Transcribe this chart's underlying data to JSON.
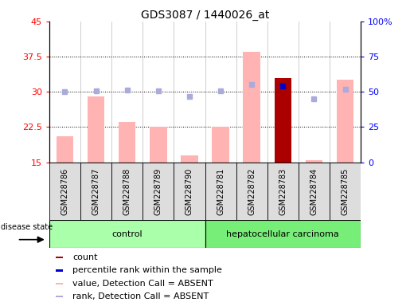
{
  "title": "GDS3087 / 1440026_at",
  "samples": [
    "GSM228786",
    "GSM228787",
    "GSM228788",
    "GSM228789",
    "GSM228790",
    "GSM228781",
    "GSM228782",
    "GSM228783",
    "GSM228784",
    "GSM228785"
  ],
  "ylim_left": [
    15,
    45
  ],
  "ylim_right": [
    0,
    100
  ],
  "yticks_left": [
    15,
    22.5,
    30,
    37.5,
    45
  ],
  "yticks_right": [
    0,
    25,
    50,
    75,
    100
  ],
  "yticklabels_left": [
    "15",
    "22.5",
    "30",
    "37.5",
    "45"
  ],
  "yticklabels_right": [
    "0",
    "25",
    "50",
    "75",
    "100%"
  ],
  "value_absent": [
    20.5,
    29.0,
    23.5,
    22.5,
    16.5,
    22.5,
    38.5,
    33.0,
    15.5,
    32.5
  ],
  "rank_absent": [
    30.0,
    30.2,
    30.3,
    30.2,
    29.0,
    30.2,
    31.5,
    null,
    28.5,
    30.5
  ],
  "count_present": [
    null,
    null,
    null,
    null,
    null,
    null,
    null,
    33.0,
    null,
    null
  ],
  "rank_present": [
    null,
    null,
    null,
    null,
    null,
    null,
    null,
    31.3,
    null,
    null
  ],
  "color_value_absent": "#FFB3B3",
  "color_rank_absent": "#AAAADD",
  "color_count_present": "#AA0000",
  "color_rank_present": "#0000CC",
  "legend_items": [
    {
      "label": "count",
      "color": "#AA0000"
    },
    {
      "label": "percentile rank within the sample",
      "color": "#0000CC"
    },
    {
      "label": "value, Detection Call = ABSENT",
      "color": "#FFB3B3"
    },
    {
      "label": "rank, Detection Call = ABSENT",
      "color": "#AAAADD"
    }
  ],
  "disease_state_label": "disease state",
  "group_control_label": "control",
  "group_hcc_label": "hepatocellular carcinoma",
  "group_control_color": "#AAFFAA",
  "group_hcc_color": "#77EE77",
  "bar_width": 0.55,
  "grid_lines": [
    22.5,
    30.0,
    37.5
  ],
  "title_fontsize": 10,
  "tick_fontsize": 8,
  "label_fontsize": 7,
  "legend_fontsize": 8
}
